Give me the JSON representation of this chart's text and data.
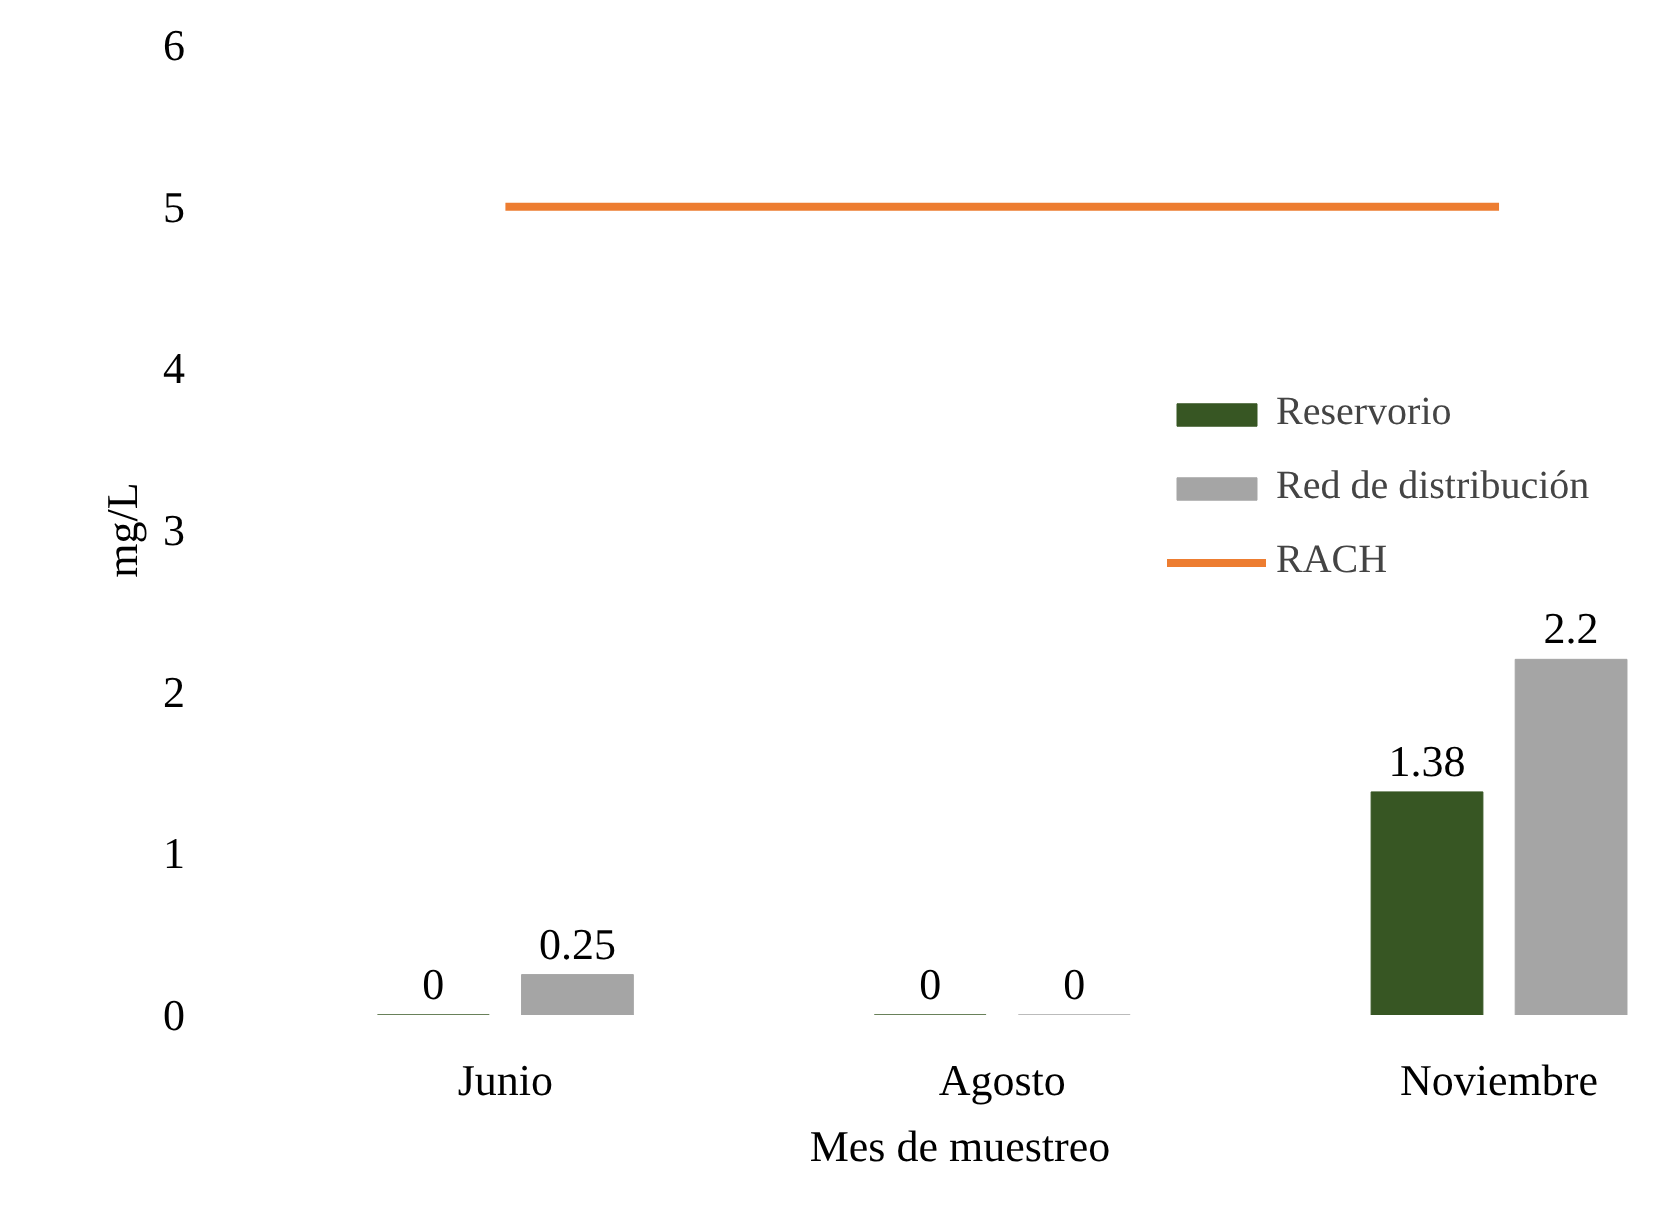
{
  "chart_data": {
    "type": "bar",
    "xlabel": "Mes de muestreo",
    "ylabel": "mg/L",
    "categories": [
      "Junio",
      "Agosto",
      "Noviembre"
    ],
    "series": [
      {
        "name": "Reservorio",
        "color": "#375623",
        "values": [
          0,
          0,
          1.38
        ],
        "value_labels": [
          "0",
          "0",
          "1.38"
        ]
      },
      {
        "name": "Red de distribución",
        "color": "#a5a5a5",
        "values": [
          0.25,
          0,
          2.2
        ],
        "value_labels": [
          "0.25",
          "0",
          "2.2"
        ]
      },
      {
        "name": "RACH",
        "type": "line",
        "color": "#ed7d31",
        "values": [
          5,
          5,
          5
        ]
      }
    ],
    "ylim": [
      0,
      6
    ],
    "yticks": [
      0,
      1,
      2,
      3,
      4,
      5,
      6
    ],
    "grid": false,
    "legend": "right"
  }
}
